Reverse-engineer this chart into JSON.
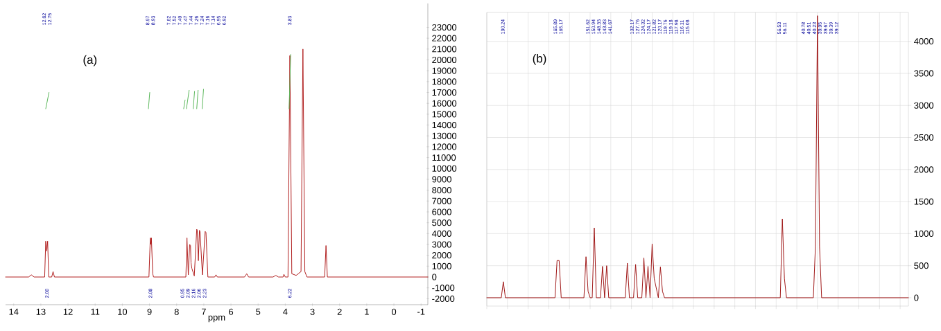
{
  "chart_data": [
    {
      "type": "line",
      "title": "(a)",
      "xlabel": "ppm",
      "xlim": [
        14.3,
        -1.25
      ],
      "ylim": [
        -2550,
        25200
      ],
      "xticks": [
        14,
        13,
        12,
        11,
        10,
        9,
        8,
        7,
        6,
        5,
        4,
        3,
        2,
        1,
        0,
        -1
      ],
      "yticks": [
        -2000,
        -1000,
        0,
        1000,
        2000,
        3000,
        4000,
        5000,
        6000,
        7000,
        8000,
        9000,
        10000,
        11000,
        12000,
        13000,
        14000,
        15000,
        16000,
        17000,
        18000,
        19000,
        20000,
        21000,
        22000,
        23000
      ],
      "series": [
        {
          "color": "#b22222",
          "x": [
            14.3,
            13.45,
            13.35,
            13.25,
            12.86,
            12.82,
            12.785,
            12.75,
            12.71,
            12.6,
            12.55,
            12.5,
            9.02,
            8.97,
            8.95,
            8.93,
            8.88,
            8.85,
            7.66,
            7.62,
            7.57,
            7.52,
            7.49,
            7.47,
            7.44,
            7.35,
            7.26,
            7.24,
            7.2,
            7.16,
            7.14,
            7.05,
            6.95,
            6.92,
            6.85,
            6.6,
            6.55,
            6.5,
            5.5,
            5.42,
            5.35,
            4.45,
            4.35,
            4.25,
            4.08,
            4.05,
            4.0,
            3.9,
            3.83,
            3.76,
            3.6,
            3.42,
            3.35,
            3.28,
            3.2,
            2.55,
            2.5,
            2.45,
            -1.25
          ],
          "values": [
            0,
            0,
            200,
            0,
            0,
            3300,
            2400,
            3300,
            0,
            0,
            500,
            0,
            0,
            3600,
            3000,
            3600,
            300,
            0,
            0,
            3600,
            200,
            3000,
            2900,
            1300,
            800,
            100,
            4400,
            4300,
            1500,
            4300,
            4200,
            200,
            4200,
            4100,
            0,
            0,
            200,
            0,
            0,
            300,
            0,
            0,
            150,
            0,
            0,
            250,
            0,
            0,
            20400,
            300,
            150,
            500,
            21000,
            500,
            0,
            0,
            2900,
            0,
            0
          ]
        },
        {
          "color": "#5cb85c",
          "x": [
            12.82,
            12.7,
            12.69,
            9.04,
            8.99,
            8.98,
            7.74,
            7.69,
            7.68,
            7.64,
            7.54,
            7.53,
            7.39,
            7.34,
            7.33,
            7.26,
            7.21,
            7.2,
            7.06,
            7.01,
            7.0,
            3.86,
            3.8
          ],
          "values": [
            15500,
            17000,
            null,
            15500,
            17000,
            null,
            15500,
            16300,
            null,
            15500,
            17200,
            null,
            15500,
            17100,
            null,
            15500,
            17200,
            null,
            15500,
            17300,
            null,
            15500,
            20500
          ]
        }
      ],
      "annotations": [
        "12.82",
        "12.75",
        "8.97",
        "8.93",
        "7.62",
        "7.52",
        "7.49",
        "7.47",
        "7.44",
        "7.26",
        "7.24",
        "7.16",
        "7.14",
        "6.95",
        "6.92",
        "3.83",
        "2.00",
        "2.08",
        "0.95",
        "2.09",
        "2.16",
        "2.06",
        "2.23",
        "6.22"
      ]
    },
    {
      "type": "line",
      "title": "(b)",
      "grid": true,
      "categories": [
        null,
        null,
        null,
        null,
        null,
        null,
        null,
        null,
        null,
        null,
        null,
        null,
        null,
        null,
        null,
        null,
        null,
        null,
        null,
        null,
        null,
        null,
        null,
        null,
        null,
        null,
        null,
        null,
        null,
        null,
        null,
        null,
        null,
        null,
        null,
        null,
        null,
        null,
        null,
        null,
        null,
        null,
        null,
        null,
        null,
        null,
        null,
        null,
        null,
        null,
        null,
        null,
        null,
        null,
        null,
        null,
        null,
        null,
        null,
        null,
        null,
        null,
        null,
        null,
        null,
        null,
        null,
        null,
        null,
        null,
        null,
        null,
        null,
        null,
        null,
        null,
        null,
        null,
        null,
        null,
        null,
        null,
        null,
        null,
        null,
        null,
        null,
        null,
        null,
        null,
        null,
        null,
        null,
        null,
        null,
        null,
        null,
        null,
        null,
        null,
        null,
        null,
        null,
        null,
        null,
        null,
        null,
        null,
        null,
        null,
        null,
        null,
        null,
        null,
        null,
        null,
        null,
        null,
        null,
        null,
        null,
        null,
        null,
        null,
        null,
        null,
        null,
        null,
        null,
        null,
        null,
        null,
        null,
        null,
        null,
        null,
        null,
        null,
        null,
        null,
        null,
        null,
        null,
        null,
        null,
        null,
        null,
        null,
        null,
        null,
        null,
        null,
        null,
        null,
        null,
        null,
        null,
        null,
        null,
        null,
        null,
        null,
        null,
        null,
        null,
        null,
        null,
        null,
        null,
        null,
        null,
        null,
        null,
        null,
        null,
        null,
        null,
        null,
        null,
        null,
        null,
        null,
        null,
        null,
        null,
        null,
        null,
        null,
        null,
        null,
        null,
        null,
        null,
        null,
        null,
        null,
        null,
        null,
        null,
        null,
        null,
        null,
        null,
        null,
        null
      ],
      "ylim": [
        -130,
        4450
      ],
      "yticks": [
        0,
        500,
        1000,
        1500,
        2000,
        2500,
        3000,
        3500,
        4000
      ],
      "series": [
        {
          "color": "#a01818",
          "values": [
            0,
            0,
            0,
            0,
            0,
            0,
            0,
            0,
            250,
            0,
            0,
            0,
            0,
            0,
            0,
            0,
            0,
            0,
            0,
            0,
            0,
            0,
            0,
            0,
            0,
            0,
            0,
            0,
            0,
            0,
            0,
            0,
            0,
            0,
            580,
            580,
            0,
            0,
            0,
            0,
            0,
            0,
            0,
            0,
            0,
            0,
            0,
            0,
            640,
            100,
            0,
            0,
            1090,
            0,
            0,
            0,
            490,
            0,
            500,
            0,
            0,
            0,
            0,
            0,
            0,
            0,
            0,
            0,
            540,
            0,
            0,
            0,
            520,
            0,
            0,
            0,
            620,
            0,
            490,
            0,
            840,
            300,
            150,
            0,
            480,
            100,
            0,
            0,
            0,
            0,
            0,
            0,
            0,
            0,
            0,
            0,
            0,
            0,
            0,
            0,
            0,
            0,
            0,
            0,
            0,
            0,
            0,
            0,
            0,
            0,
            0,
            0,
            0,
            0,
            0,
            0,
            0,
            0,
            0,
            0,
            0,
            0,
            0,
            0,
            0,
            0,
            0,
            0,
            0,
            0,
            0,
            0,
            0,
            0,
            0,
            0,
            0,
            0,
            0,
            0,
            0,
            0,
            0,
            1230,
            300,
            0,
            0,
            0,
            0,
            0,
            0,
            0,
            0,
            0,
            0,
            0,
            0,
            0,
            0,
            800,
            4400,
            800,
            0,
            0,
            0,
            0,
            0,
            0,
            0,
            0,
            0,
            0,
            0,
            0,
            0,
            0,
            0,
            0,
            0,
            0,
            0,
            0,
            0,
            0,
            0,
            0,
            0,
            0,
            0,
            0,
            0,
            0,
            0,
            0,
            0,
            0,
            0,
            0,
            0,
            0,
            0,
            0,
            0,
            0,
            0
          ]
        }
      ],
      "annotations": [
        "190.24",
        "165.89",
        "165.17",
        "151.62",
        "150.94",
        "148.33",
        "143.83",
        "141.67",
        "132.17",
        "127.76",
        "124.32",
        "124.17",
        "121.82",
        "120.17",
        "119.76",
        "119.18",
        "117.98",
        "116.11",
        "115.08",
        "56.53",
        "56.11",
        "40.78",
        "40.51",
        "40.23",
        "39.95",
        "39.67",
        "39.39",
        "39.12"
      ]
    }
  ]
}
